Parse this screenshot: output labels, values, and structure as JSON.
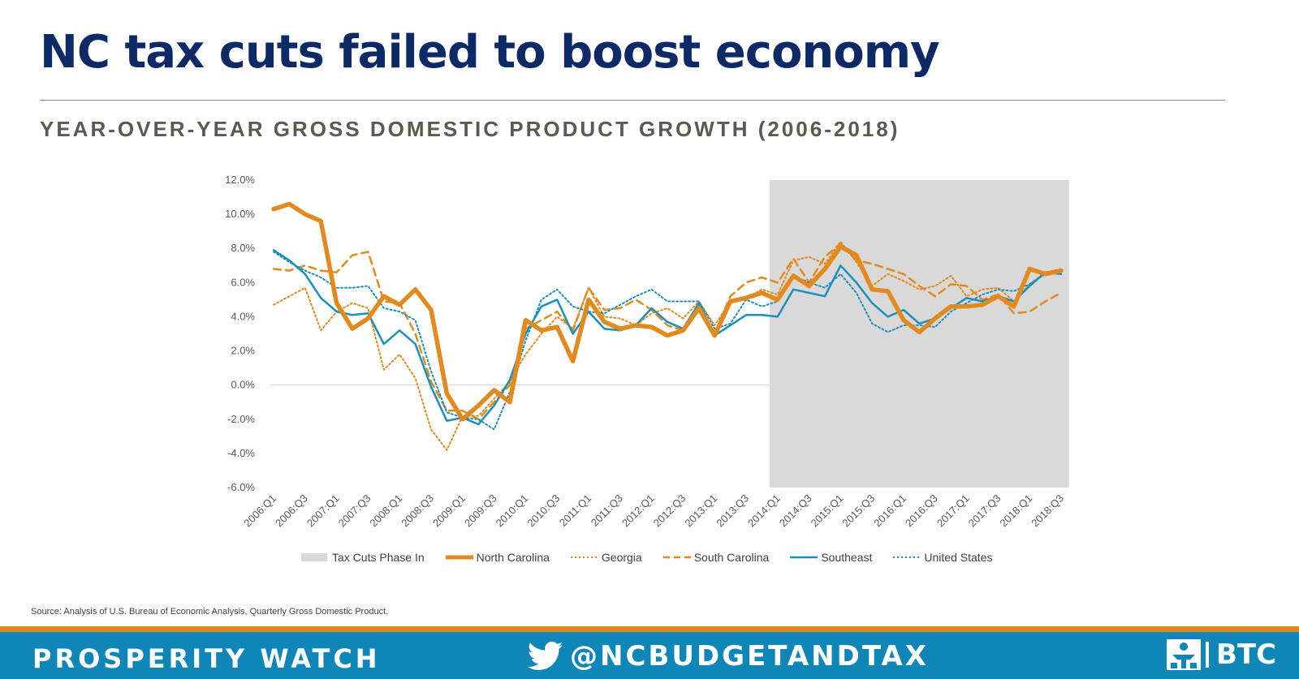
{
  "header": {
    "title": "NC tax cuts failed to boost economy",
    "subtitle": "YEAR-OVER-YEAR GROSS DOMESTIC PRODUCT GROWTH (2006-2018)"
  },
  "chart_data": {
    "type": "line",
    "title": "",
    "xlabel": "",
    "ylabel": "",
    "ylim": [
      -6,
      12
    ],
    "y_ticks": [
      -6,
      -4,
      -2,
      0,
      2,
      4,
      6,
      8,
      10,
      12
    ],
    "y_tick_labels": [
      "-6.0%",
      "-4.0%",
      "-2.0%",
      "0.0%",
      "2.0%",
      "4.0%",
      "6.0%",
      "8.0%",
      "10.0%",
      "12.0%"
    ],
    "x": [
      "2006:Q1",
      "2006:Q2",
      "2006:Q3",
      "2006:Q4",
      "2007:Q1",
      "2007:Q2",
      "2007:Q3",
      "2007:Q4",
      "2008:Q1",
      "2008:Q2",
      "2008:Q3",
      "2008:Q4",
      "2009:Q1",
      "2009:Q2",
      "2009:Q3",
      "2009:Q4",
      "2010:Q1",
      "2010:Q2",
      "2010:Q3",
      "2010:Q4",
      "2011:Q1",
      "2011:Q2",
      "2011:Q3",
      "2011:Q4",
      "2012:Q1",
      "2012:Q2",
      "2012:Q3",
      "2012:Q4",
      "2013:Q1",
      "2013:Q2",
      "2013:Q3",
      "2013:Q4",
      "2014:Q1",
      "2014:Q2",
      "2014:Q3",
      "2014:Q4",
      "2015:Q1",
      "2015:Q2",
      "2015:Q3",
      "2015:Q4",
      "2016:Q1",
      "2016:Q2",
      "2016:Q3",
      "2016:Q4",
      "2017:Q1",
      "2017:Q2",
      "2017:Q3",
      "2017:Q4",
      "2018:Q1",
      "2018:Q2",
      "2018:Q3"
    ],
    "x_tick_labels": [
      "2006:Q1",
      "2006:Q3",
      "2007:Q1",
      "2007:Q3",
      "2008:Q1",
      "2008:Q3",
      "2009:Q1",
      "2009:Q3",
      "2010:Q1",
      "2010:Q3",
      "2011:Q1",
      "2011:Q3",
      "2012:Q1",
      "2012:Q3",
      "2013:Q1",
      "2013:Q3",
      "2014:Q1",
      "2014:Q3",
      "2015:Q1",
      "2015:Q3",
      "2016:Q1",
      "2016:Q3",
      "2017:Q1",
      "2017:Q3",
      "2018:Q1",
      "2018:Q3"
    ],
    "shaded_region": {
      "name": "Tax Cuts Phase In",
      "from": "2014:Q1",
      "to": "2018:Q3",
      "color": "#d9d9d9"
    },
    "grid": false,
    "zero_line": true,
    "legend_position": "bottom",
    "series": [
      {
        "name": "North Carolina",
        "color": "#e38a1f",
        "style": "solid-thick",
        "values": [
          10.3,
          10.6,
          10.0,
          9.6,
          4.8,
          3.3,
          3.9,
          5.2,
          4.7,
          5.6,
          4.4,
          -0.5,
          -2.0,
          -1.2,
          -0.3,
          -1.0,
          3.8,
          3.2,
          3.4,
          1.4,
          5.0,
          3.7,
          3.3,
          3.5,
          3.4,
          2.9,
          3.2,
          4.5,
          2.9,
          4.9,
          5.1,
          5.4,
          5.0,
          6.4,
          5.8,
          6.8,
          8.1,
          7.6,
          5.6,
          5.5,
          3.8,
          3.1,
          3.9,
          4.6,
          4.6,
          4.7,
          5.2,
          4.6,
          6.8,
          6.5,
          6.7
        ]
      },
      {
        "name": "Georgia",
        "color": "#e38a1f",
        "style": "dotted",
        "values": [
          4.7,
          5.2,
          5.7,
          3.2,
          4.3,
          4.8,
          4.5,
          0.9,
          1.8,
          0.4,
          -2.6,
          -3.8,
          -1.8,
          -1.8,
          -0.8,
          0.2,
          1.8,
          3.0,
          4.0,
          3.3,
          5.7,
          4.0,
          3.9,
          3.5,
          4.2,
          4.5,
          3.9,
          4.9,
          3.5,
          4.9,
          5.1,
          5.6,
          5.3,
          7.3,
          7.5,
          7.1,
          8.4,
          7.2,
          5.8,
          6.5,
          6.1,
          5.6,
          5.8,
          6.4,
          5.2,
          5.6,
          5.7,
          4.9,
          5.9,
          6.6,
          6.8
        ]
      },
      {
        "name": "South Carolina",
        "color": "#e38a1f",
        "style": "dashed",
        "values": [
          6.8,
          6.7,
          7.0,
          6.7,
          6.6,
          7.6,
          7.8,
          4.9,
          4.8,
          3.0,
          0.2,
          -1.5,
          -1.5,
          -2.0,
          -1.0,
          0.0,
          3.3,
          3.8,
          4.3,
          3.2,
          5.7,
          4.4,
          4.5,
          5.0,
          4.4,
          3.5,
          3.2,
          4.7,
          3.0,
          5.2,
          6.0,
          6.3,
          6.0,
          7.4,
          6.0,
          7.5,
          8.3,
          7.3,
          7.1,
          6.8,
          6.5,
          5.8,
          5.2,
          5.9,
          5.8,
          5.0,
          5.3,
          4.2,
          4.3,
          4.9,
          5.4
        ]
      },
      {
        "name": "Southeast",
        "color": "#1b8fbd",
        "style": "solid",
        "values": [
          7.9,
          7.3,
          6.5,
          5.1,
          4.3,
          4.1,
          4.2,
          2.4,
          3.2,
          2.4,
          -0.1,
          -2.1,
          -1.9,
          -2.3,
          -1.2,
          0.3,
          3.0,
          4.6,
          5.0,
          3.0,
          4.3,
          3.3,
          3.2,
          3.5,
          4.5,
          3.7,
          3.3,
          4.8,
          2.9,
          3.5,
          4.1,
          4.1,
          4.0,
          5.6,
          5.4,
          5.2,
          7.0,
          6.0,
          4.8,
          4.0,
          4.4,
          3.6,
          3.9,
          4.5,
          5.1,
          4.9,
          5.2,
          4.9,
          5.8,
          6.6,
          6.5
        ]
      },
      {
        "name": "United States",
        "color": "#1b8fbd",
        "style": "dotted",
        "values": [
          7.8,
          7.2,
          6.7,
          6.3,
          5.7,
          5.7,
          5.8,
          4.5,
          4.3,
          3.8,
          0.8,
          -1.6,
          -1.9,
          -2.0,
          -2.6,
          -0.4,
          2.6,
          5.0,
          5.6,
          4.6,
          4.3,
          4.2,
          4.7,
          5.2,
          5.6,
          4.9,
          4.9,
          4.9,
          3.3,
          3.6,
          5.0,
          4.6,
          4.9,
          6.4,
          6.0,
          5.7,
          6.5,
          5.4,
          3.6,
          3.1,
          3.5,
          3.5,
          3.4,
          4.3,
          4.8,
          5.3,
          5.6,
          5.5,
          5.9,
          6.5,
          6.7
        ]
      }
    ]
  },
  "legend": {
    "items": [
      "Tax Cuts Phase In",
      "North Carolina",
      "Georgia",
      "South Carolina",
      "Southeast",
      "United States"
    ]
  },
  "source": "Source:  Analysis of U.S. Bureau of Economic Analysis, Quarterly Gross Domestic Product.",
  "footer": {
    "left_text": "PROSPERITY WATCH",
    "handle": "@NCBUDGETANDTAX",
    "brand": "BTC",
    "twitter_icon": "twitter-bird-icon",
    "brand_icon": "btc-logo-icon",
    "colors": {
      "bar": "#0f86b8",
      "stripe": "#e08a1e"
    }
  }
}
